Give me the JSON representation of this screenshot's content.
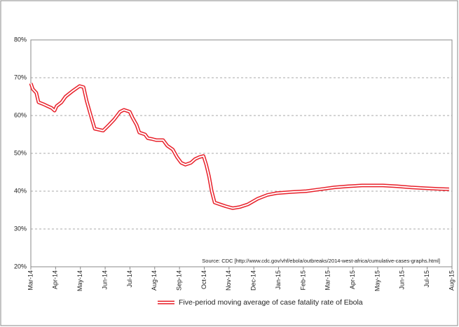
{
  "chart_data": {
    "type": "line",
    "source": "Source: CDC [http://www.cdc.gov/vhf/ebola/outbreaks/2014-west-africa/cumulative-cases-graphs.html]",
    "xlim": [
      0,
      17
    ],
    "xticks": [
      {
        "value": 0,
        "label": "Mar-14"
      },
      {
        "value": 1,
        "label": "Apr-14"
      },
      {
        "value": 2,
        "label": "May-14"
      },
      {
        "value": 3,
        "label": "Jun-14"
      },
      {
        "value": 4,
        "label": "Jul-14"
      },
      {
        "value": 5,
        "label": "Aug-14"
      },
      {
        "value": 6,
        "label": "Sep-14"
      },
      {
        "value": 7,
        "label": "Oct-14"
      },
      {
        "value": 8,
        "label": "Nov-14"
      },
      {
        "value": 9,
        "label": "Dec-14"
      },
      {
        "value": 10,
        "label": "Jan-15"
      },
      {
        "value": 11,
        "label": "Feb-15"
      },
      {
        "value": 12,
        "label": "Mar-15"
      },
      {
        "value": 13,
        "label": "Apr-15"
      },
      {
        "value": 14,
        "label": "May-15"
      },
      {
        "value": 15,
        "label": "Jun-15"
      },
      {
        "value": 16,
        "label": "Jul-15"
      },
      {
        "value": 17,
        "label": "Aug-15"
      }
    ],
    "ylim": [
      20,
      80
    ],
    "yticks": [
      {
        "value": 20,
        "label": "20%"
      },
      {
        "value": 30,
        "label": "30%"
      },
      {
        "value": 40,
        "label": "40%"
      },
      {
        "value": 50,
        "label": "50%"
      },
      {
        "value": 60,
        "label": "60%"
      },
      {
        "value": 70,
        "label": "70%"
      },
      {
        "value": 80,
        "label": "80%"
      }
    ],
    "grid": true,
    "legend": "bottom",
    "series": [
      {
        "name": "Five-period moving average of case fatality rate of Ebola",
        "color": "#e8202a",
        "x": [
          0,
          0.08,
          0.22,
          0.31,
          0.51,
          0.67,
          0.84,
          0.96,
          1.04,
          1.24,
          1.4,
          1.69,
          1.97,
          2.13,
          2.25,
          2.42,
          2.58,
          2.92,
          3.15,
          3.37,
          3.6,
          3.76,
          3.99,
          4.1,
          4.27,
          4.38,
          4.61,
          4.72,
          4.89,
          5.06,
          5.34,
          5.51,
          5.73,
          5.9,
          6.07,
          6.24,
          6.46,
          6.63,
          6.8,
          6.97,
          7.08,
          7.19,
          7.3,
          7.42,
          7.64,
          7.87,
          8.15,
          8.43,
          8.76,
          9.16,
          9.55,
          9.94,
          10.56,
          11.12,
          11.69,
          12.25,
          12.81,
          13.37,
          14.21,
          14.78,
          15.34,
          15.9,
          16.46,
          16.88
        ],
        "values": [
          68.5,
          67,
          66,
          63.5,
          63,
          62.5,
          62,
          61.3,
          62.5,
          63.5,
          65,
          66.5,
          67.8,
          67.5,
          64,
          60,
          56.5,
          56,
          57.5,
          59,
          61,
          61.5,
          61,
          59.5,
          57.5,
          55.5,
          55,
          54,
          53.8,
          53.5,
          53.5,
          52,
          51,
          49,
          47.5,
          47,
          47.5,
          48.5,
          49,
          49.3,
          47,
          44,
          40,
          37,
          36.5,
          36,
          35.5,
          35.8,
          36.5,
          38,
          39,
          39.5,
          39.8,
          40,
          40.5,
          41,
          41.3,
          41.5,
          41.5,
          41.3,
          41,
          40.8,
          40.6,
          40.5
        ]
      }
    ]
  }
}
